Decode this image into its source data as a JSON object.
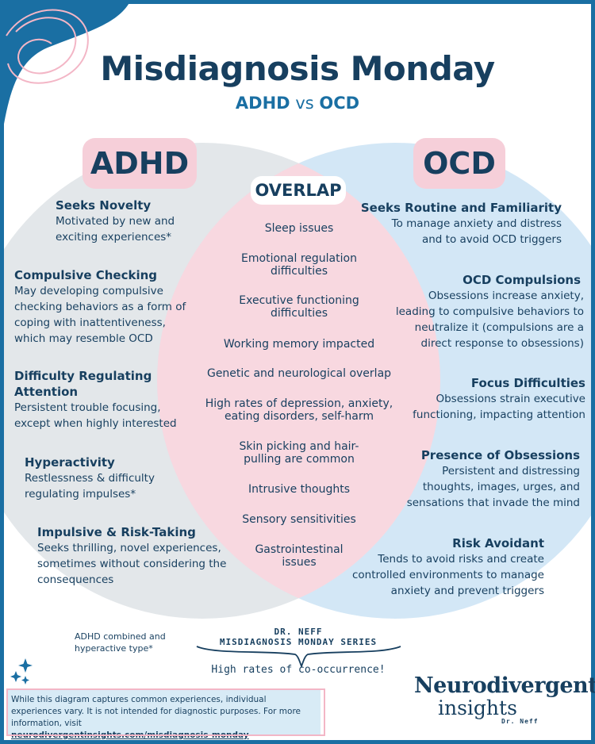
{
  "header": {
    "title": "Misdiagnosis Monday",
    "subtitle_left": "ADHD",
    "subtitle_vs": "vs",
    "subtitle_right": "OCD"
  },
  "venn": {
    "left_label": "ADHD",
    "right_label": "OCD",
    "overlap_label": "OVERLAP"
  },
  "adhd_items": [
    {
      "heading": "Seeks Novelty",
      "desc": "Motivated by new and exciting experiences*"
    },
    {
      "heading": "Compulsive Checking",
      "desc": "May developing compulsive checking behaviors as a form of coping with inattentiveness, which may resemble OCD"
    },
    {
      "heading": "Difficulty Regulating Attention",
      "desc": "Persistent trouble focusing, except when highly interested"
    },
    {
      "heading": "Hyperactivity",
      "desc": "Restlessness & difficulty regulating impulses*"
    },
    {
      "heading": "Impulsive & Risk-Taking",
      "desc": "Seeks thrilling, novel experiences, sometimes without considering the consequences"
    }
  ],
  "ocd_items": [
    {
      "heading": "Seeks Routine and Familiarity",
      "desc": "To manage anxiety and distress and to avoid OCD triggers"
    },
    {
      "heading": "OCD Compulsions",
      "desc": "Obsessions increase anxiety, leading to compulsive behaviors to neutralize it (compulsions are a direct response to obsessions)"
    },
    {
      "heading": "Focus Difficulties",
      "desc": "Obsessions strain executive functioning, impacting attention"
    },
    {
      "heading": "Presence of Obsessions",
      "desc": "Persistent and distressing thoughts, images, urges, and sensations that invade the mind"
    },
    {
      "heading": "Risk Avoidant",
      "desc": "Tends to avoid risks and create controlled environments to manage anxiety and prevent triggers"
    }
  ],
  "overlap_items": [
    "Sleep issues",
    "Emotional regulation difficulties",
    "Executive functioning difficulties",
    "Working memory impacted",
    "Genetic and neurological overlap",
    "High rates of depression, anxiety, eating disorders, self-harm",
    "Skin picking and hair-pulling are common",
    "Intrusive thoughts",
    "Sensory sensitivities",
    "Gastrointestinal issues"
  ],
  "footer": {
    "adhd_note": "ADHD combined and hyperactive type*",
    "series_line1": "DR. NEFF",
    "series_line2": "MISDIAGNOSIS MONDAY SERIES",
    "cooccurrence": "High rates of co-occurrence!",
    "disclaimer": "While this diagram captures common experiences, individual experiences vary. It is not intended for diagnostic purposes. For more information, visit",
    "link": "neurodivergentinsights.com/misdiagnosis-monday",
    "logo_line1": "Neurodivergent",
    "logo_line2": "insights",
    "logo_line3": "Dr. Neff"
  },
  "colors": {
    "navy": "#173f5f",
    "blue": "#1a6fa3",
    "adhd_circle": "#e3e7ea",
    "ocd_circle": "#d3e7f6",
    "overlap": "#f8d8e0",
    "badge_pink": "#f6cfd9"
  }
}
